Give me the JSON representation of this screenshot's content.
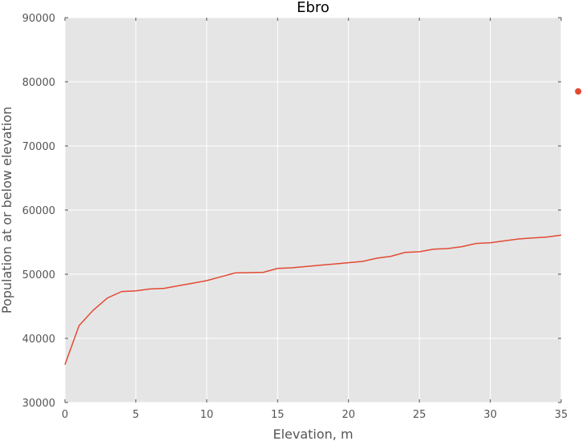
{
  "chart_data": {
    "type": "line",
    "title": "Ebro",
    "xlabel": "Elevation, m",
    "ylabel": "Population at or below elevation",
    "xlim": [
      0,
      35
    ],
    "ylim": [
      30000,
      90000
    ],
    "xticks": [
      "0",
      "5",
      "10",
      "15",
      "20",
      "25",
      "30",
      "35"
    ],
    "yticks": [
      "30000",
      "40000",
      "50000",
      "60000",
      "70000",
      "80000",
      "90000"
    ],
    "grid": true,
    "legend": "none",
    "colors": {
      "plot_background": "#e5e5e5",
      "grid": "#ffffff",
      "line": "#e24a33",
      "marker": "#e24a33"
    },
    "series": [
      {
        "x": [
          0,
          1,
          2,
          3,
          4,
          5,
          6,
          7,
          8,
          9,
          10,
          11,
          12,
          13,
          14,
          15,
          16,
          17,
          18,
          19,
          20,
          21,
          22,
          23,
          24,
          25,
          26,
          27,
          28,
          29,
          30,
          31,
          32,
          33,
          34,
          35
        ],
        "values": [
          35900,
          42000,
          44400,
          46300,
          47300,
          47400,
          47700,
          47800,
          48200,
          48600,
          49000,
          49600,
          50200,
          50250,
          50300,
          50900,
          51000,
          51200,
          51400,
          51600,
          51800,
          52000,
          52500,
          52800,
          53400,
          53500,
          53900,
          54000,
          54300,
          54800,
          54900,
          55200,
          55500,
          55650,
          55800,
          56100
        ]
      }
    ],
    "outlier_point": {
      "x": 36.2,
      "y": 78500
    }
  }
}
